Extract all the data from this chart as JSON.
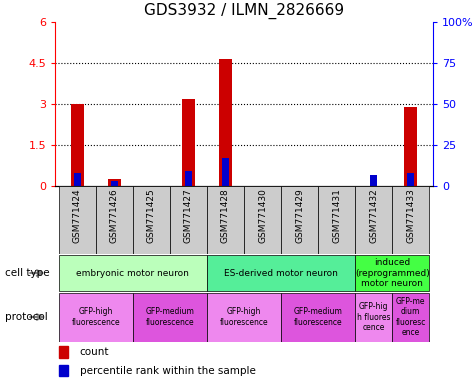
{
  "title": "GDS3932 / ILMN_2826669",
  "samples": [
    "GSM771424",
    "GSM771426",
    "GSM771425",
    "GSM771427",
    "GSM771428",
    "GSM771430",
    "GSM771429",
    "GSM771431",
    "GSM771432",
    "GSM771433"
  ],
  "counts": [
    3.0,
    0.25,
    0.0,
    3.2,
    4.65,
    0.0,
    0.0,
    0.0,
    0.0,
    2.9
  ],
  "percentile_vals": [
    8,
    3,
    0,
    9,
    17,
    0,
    0,
    0,
    7,
    8
  ],
  "ylim_left": [
    0,
    6
  ],
  "ylim_right": [
    0,
    100
  ],
  "yticks_left": [
    0,
    1.5,
    3.0,
    4.5,
    6.0
  ],
  "ytick_labels_left": [
    "0",
    "1.5",
    "3",
    "4.5",
    "6"
  ],
  "yticks_right": [
    0,
    25,
    50,
    75,
    100
  ],
  "ytick_labels_right": [
    "0",
    "25",
    "50",
    "75",
    "100%"
  ],
  "count_color": "#cc0000",
  "percentile_color": "#0000cc",
  "cell_types": [
    {
      "label": "embryonic motor neuron",
      "start": 0,
      "end": 4,
      "color": "#bbffbb"
    },
    {
      "label": "ES-derived motor neuron",
      "start": 4,
      "end": 8,
      "color": "#55ee99"
    },
    {
      "label": "induced\n(reprogrammed)\nmotor neuron",
      "start": 8,
      "end": 10,
      "color": "#44ff44"
    }
  ],
  "protocols": [
    {
      "label": "GFP-high\nfluorescence",
      "start": 0,
      "end": 2,
      "color": "#ee88ee"
    },
    {
      "label": "GFP-medium\nfluorescence",
      "start": 2,
      "end": 4,
      "color": "#dd55dd"
    },
    {
      "label": "GFP-high\nfluorescence",
      "start": 4,
      "end": 6,
      "color": "#ee88ee"
    },
    {
      "label": "GFP-medium\nfluorescence",
      "start": 6,
      "end": 8,
      "color": "#dd55dd"
    },
    {
      "label": "GFP-hig\nh fluores\ncence",
      "start": 8,
      "end": 9,
      "color": "#ee88ee"
    },
    {
      "label": "GFP-me\ndium\nfluoresc\nence",
      "start": 9,
      "end": 10,
      "color": "#dd55dd"
    }
  ],
  "cell_type_label": "cell type",
  "protocol_label": "protocol",
  "legend_count_label": "count",
  "legend_percentile_label": "percentile rank within the sample",
  "dotted_lines": [
    1.5,
    3.0,
    4.5
  ],
  "sample_box_color": "#cccccc"
}
